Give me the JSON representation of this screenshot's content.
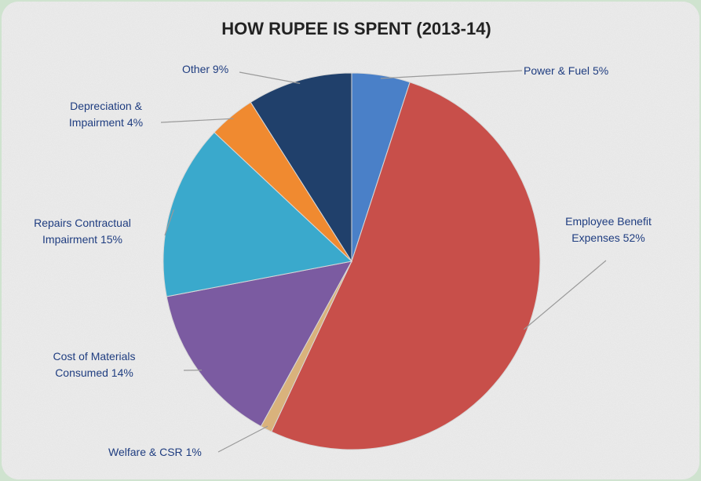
{
  "chart_data": {
    "type": "pie",
    "title": "HOW RUPEE IS SPENT (2013-14)",
    "categories": [
      "Power & Fuel",
      "Employee Benefit Expenses",
      "Welfare & CSR",
      "Cost of Materials Consumed",
      "Repairs Contractual Impairment",
      "Depreciation & Impairment",
      "Other"
    ],
    "values": [
      5,
      52,
      1,
      14,
      15,
      4,
      9
    ],
    "value_labels": [
      "5%",
      "52%",
      "1%",
      "14%",
      "15%",
      "4%",
      "9%"
    ],
    "colors": [
      "#4a80c8",
      "#c84f4a",
      "#d9b27c",
      "#7b5ba1",
      "#3aa9cc",
      "#f08a30",
      "#20406b"
    ]
  }
}
